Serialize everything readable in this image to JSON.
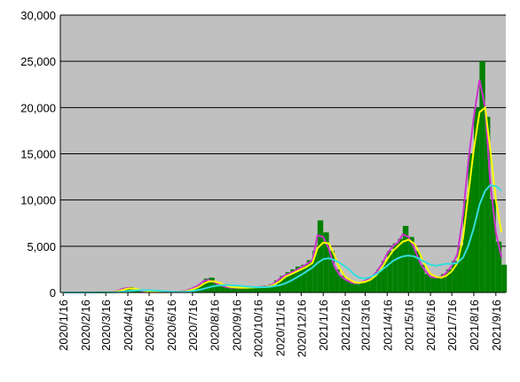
{
  "chart_data": {
    "type": "bar",
    "x": [
      "2020/1/16",
      "2020/1/24",
      "2020/2/1",
      "2020/2/8",
      "2020/2/16",
      "2020/2/24",
      "2020/3/1",
      "2020/3/8",
      "2020/3/16",
      "2020/3/24",
      "2020/4/1",
      "2020/4/8",
      "2020/4/16",
      "2020/4/24",
      "2020/5/1",
      "2020/5/8",
      "2020/5/16",
      "2020/5/24",
      "2020/6/1",
      "2020/6/8",
      "2020/6/16",
      "2020/6/24",
      "2020/7/1",
      "2020/7/8",
      "2020/7/16",
      "2020/7/24",
      "2020/8/1",
      "2020/8/8",
      "2020/8/16",
      "2020/8/24",
      "2020/9/1",
      "2020/9/8",
      "2020/9/16",
      "2020/9/24",
      "2020/10/1",
      "2020/10/8",
      "2020/10/16",
      "2020/10/24",
      "2020/11/1",
      "2020/11/8",
      "2020/11/16",
      "2020/11/24",
      "2020/12/1",
      "2020/12/8",
      "2020/12/16",
      "2020/12/24",
      "2021/1/1",
      "2021/1/8",
      "2021/1/16",
      "2021/1/24",
      "2021/2/1",
      "2021/2/8",
      "2021/2/16",
      "2021/2/24",
      "2021/3/1",
      "2021/3/8",
      "2021/3/16",
      "2021/3/24",
      "2021/4/1",
      "2021/4/8",
      "2021/4/16",
      "2021/4/24",
      "2021/5/1",
      "2021/5/8",
      "2021/5/16",
      "2021/5/24",
      "2021/6/1",
      "2021/6/8",
      "2021/6/16",
      "2021/6/24",
      "2021/7/1",
      "2021/7/8",
      "2021/7/16",
      "2021/7/24",
      "2021/8/1",
      "2021/8/8",
      "2021/8/16",
      "2021/8/24",
      "2021/9/1",
      "2021/9/8",
      "2021/9/16",
      "2021/9/24"
    ],
    "series": [
      {
        "type": "bar",
        "color": "#008000",
        "values": [
          0,
          0,
          5,
          10,
          20,
          30,
          30,
          50,
          30,
          70,
          250,
          500,
          580,
          400,
          250,
          100,
          30,
          20,
          40,
          40,
          50,
          100,
          150,
          350,
          600,
          900,
          1500,
          1600,
          1100,
          900,
          700,
          550,
          600,
          450,
          600,
          650,
          650,
          750,
          900,
          1300,
          1800,
          2200,
          2500,
          2800,
          3000,
          3500,
          4500,
          7800,
          6500,
          4500,
          2500,
          1800,
          1400,
          1000,
          900,
          1100,
          1400,
          1800,
          2500,
          3400,
          4500,
          5300,
          5800,
          7200,
          6000,
          4500,
          3000,
          2000,
          1700,
          1700,
          2000,
          2500,
          3400,
          5000,
          10000,
          15000,
          20000,
          25000,
          19000,
          10000,
          5500,
          3000
        ]
      },
      {
        "type": "line",
        "color": "#cc33cc",
        "values": [
          0,
          0,
          2,
          5,
          10,
          15,
          20,
          35,
          30,
          50,
          150,
          380,
          500,
          400,
          260,
          120,
          50,
          30,
          35,
          40,
          45,
          70,
          120,
          220,
          450,
          750,
          1250,
          1350,
          1100,
          800,
          600,
          520,
          520,
          480,
          550,
          560,
          580,
          620,
          700,
          1000,
          1500,
          1900,
          2100,
          2400,
          2700,
          3100,
          3500,
          6200,
          6000,
          4700,
          2800,
          1900,
          1400,
          1100,
          1000,
          1050,
          1250,
          1600,
          2200,
          3000,
          4200,
          5000,
          5400,
          6300,
          6000,
          4800,
          3300,
          2400,
          1700,
          1600,
          1700,
          2100,
          2900,
          4200,
          8500,
          14000,
          19000,
          23000,
          20000,
          12000,
          6500,
          3800
        ]
      },
      {
        "type": "line",
        "color": "#ffff00",
        "values": [
          0,
          0,
          1,
          3,
          6,
          10,
          15,
          25,
          28,
          40,
          100,
          250,
          420,
          430,
          330,
          200,
          100,
          50,
          40,
          38,
          40,
          55,
          90,
          160,
          320,
          560,
          950,
          1200,
          1200,
          1000,
          750,
          600,
          540,
          520,
          520,
          540,
          560,
          580,
          650,
          850,
          1200,
          1700,
          1950,
          2200,
          2500,
          2800,
          3200,
          4800,
          5400,
          5300,
          4000,
          2600,
          1700,
          1300,
          1100,
          1050,
          1150,
          1400,
          1900,
          2600,
          3600,
          4500,
          5000,
          5500,
          5700,
          5300,
          4200,
          3000,
          2000,
          1700,
          1600,
          1800,
          2300,
          3200,
          6000,
          10500,
          15500,
          19500,
          20000,
          15500,
          10000,
          6500
        ]
      },
      {
        "type": "line",
        "color": "#33dddd",
        "values": [
          0,
          0,
          0,
          1,
          3,
          5,
          8,
          12,
          16,
          22,
          40,
          80,
          140,
          200,
          240,
          250,
          240,
          210,
          170,
          120,
          80,
          60,
          70,
          100,
          160,
          260,
          400,
          560,
          700,
          780,
          800,
          780,
          740,
          690,
          640,
          600,
          580,
          570,
          600,
          680,
          800,
          1000,
          1250,
          1550,
          1900,
          2300,
          2700,
          3200,
          3600,
          3700,
          3500,
          3200,
          2800,
          2300,
          1900,
          1600,
          1500,
          1700,
          2000,
          2400,
          2900,
          3400,
          3700,
          3900,
          4000,
          3900,
          3600,
          3300,
          3000,
          2900,
          3000,
          3100,
          3100,
          3200,
          3800,
          5000,
          7000,
          9500,
          11000,
          11600,
          11500,
          11000
        ]
      }
    ],
    "xlim": [
      "2020/1/12",
      "2021/9/30"
    ],
    "xticks": [
      "2020/1/16",
      "2020/2/16",
      "2020/3/16",
      "2020/4/16",
      "2020/5/16",
      "2020/6/16",
      "2020/7/16",
      "2020/8/16",
      "2020/9/16",
      "2020/10/16",
      "2020/11/16",
      "2020/12/16",
      "2021/1/16",
      "2021/2/16",
      "2021/3/16",
      "2021/4/16",
      "2021/5/16",
      "2021/6/16",
      "2021/7/16",
      "2021/8/16",
      "2021/9/16"
    ],
    "ylim": [
      0,
      30000
    ],
    "yticks": [
      0,
      {
        "value": 5000,
        "label": "5,000"
      },
      {
        "value": 10000,
        "label": "10,000"
      },
      {
        "value": 15000,
        "label": "15,000"
      },
      {
        "value": 20000,
        "label": "20,000"
      },
      {
        "value": 25000,
        "label": "25,000"
      },
      {
        "value": 30000,
        "label": "30,000"
      }
    ],
    "grid": true
  }
}
